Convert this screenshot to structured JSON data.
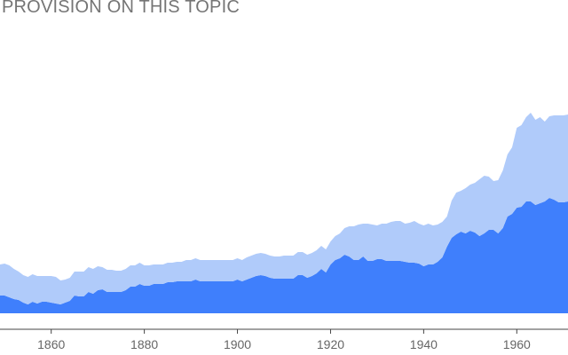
{
  "chart_data": {
    "type": "area",
    "title": "PROVISION ON THIS TOPIC",
    "xlabel": "",
    "ylabel": "",
    "xlim": [
      1849,
      1971
    ],
    "ylim": [
      0,
      235
    ],
    "grid": false,
    "x_ticks": [
      "1860",
      "1880",
      "1900",
      "1920",
      "1940",
      "1960"
    ],
    "x": [
      1849,
      1850,
      1851,
      1852,
      1853,
      1854,
      1855,
      1856,
      1857,
      1858,
      1859,
      1860,
      1861,
      1862,
      1863,
      1864,
      1865,
      1866,
      1867,
      1868,
      1869,
      1870,
      1871,
      1872,
      1873,
      1874,
      1875,
      1876,
      1877,
      1878,
      1879,
      1880,
      1881,
      1882,
      1883,
      1884,
      1885,
      1886,
      1887,
      1888,
      1889,
      1890,
      1891,
      1892,
      1893,
      1894,
      1895,
      1896,
      1897,
      1898,
      1899,
      1900,
      1901,
      1902,
      1903,
      1904,
      1905,
      1906,
      1907,
      1908,
      1909,
      1910,
      1911,
      1912,
      1913,
      1914,
      1915,
      1916,
      1917,
      1918,
      1919,
      1920,
      1921,
      1922,
      1923,
      1924,
      1925,
      1926,
      1927,
      1928,
      1929,
      1930,
      1931,
      1932,
      1933,
      1934,
      1935,
      1936,
      1937,
      1938,
      1939,
      1940,
      1941,
      1942,
      1943,
      1944,
      1945,
      1946,
      1947,
      1948,
      1949,
      1950,
      1951,
      1952,
      1953,
      1954,
      1955,
      1956,
      1957,
      1958,
      1959,
      1960,
      1961,
      1962,
      1963,
      1964,
      1965,
      1966,
      1967,
      1968,
      1969,
      1970,
      1971
    ],
    "series": [
      {
        "color": "#3f7ffc",
        "values": [
          20,
          20,
          18,
          16,
          15,
          12,
          10,
          13,
          11,
          13,
          13,
          12,
          11,
          10,
          12,
          14,
          20,
          19,
          19,
          24,
          22,
          26,
          27,
          24,
          24,
          24,
          24,
          26,
          30,
          30,
          33,
          31,
          31,
          33,
          33,
          33,
          35,
          35,
          36,
          36,
          36,
          36,
          38,
          36,
          36,
          36,
          36,
          36,
          36,
          36,
          36,
          38,
          36,
          38,
          40,
          42,
          43,
          42,
          40,
          39,
          39,
          39,
          39,
          39,
          43,
          43,
          40,
          42,
          45,
          50,
          46,
          55,
          60,
          62,
          66,
          64,
          60,
          60,
          64,
          59,
          59,
          61,
          61,
          59,
          59,
          59,
          59,
          58,
          57,
          57,
          56,
          53,
          55,
          55,
          58,
          63,
          75,
          85,
          89,
          92,
          90,
          93,
          91,
          87,
          90,
          94,
          94,
          90,
          96,
          109,
          112,
          119,
          120,
          126,
          126,
          122,
          124,
          126,
          130,
          128,
          125,
          125,
          126
        ]
      },
      {
        "color": "#b0cbfa",
        "values": [
          35,
          36,
          36,
          34,
          32,
          31,
          31,
          31,
          31,
          29,
          29,
          30,
          30,
          27,
          26,
          26,
          27,
          28,
          28,
          28,
          28,
          27,
          25,
          25,
          25,
          24,
          24,
          24,
          24,
          24,
          24,
          23,
          23,
          22,
          22,
          22,
          22,
          22,
          22,
          22,
          24,
          24,
          24,
          24,
          24,
          24,
          24,
          24,
          24,
          24,
          24,
          24,
          24,
          25,
          25,
          25,
          25,
          25,
          25,
          25,
          25,
          26,
          26,
          26,
          26,
          26,
          26,
          26,
          26,
          26,
          26,
          26,
          27,
          28,
          30,
          34,
          38,
          40,
          37,
          42,
          41,
          38,
          40,
          42,
          44,
          45,
          45,
          43,
          45,
          47,
          45,
          46,
          46,
          44,
          42,
          40,
          34,
          42,
          47,
          46,
          51,
          52,
          56,
          64,
          65,
          60,
          55,
          60,
          65,
          70,
          75,
          90,
          92,
          95,
          100,
          96,
          97,
          90,
          92,
          95,
          98,
          98,
          98
        ]
      }
    ]
  }
}
